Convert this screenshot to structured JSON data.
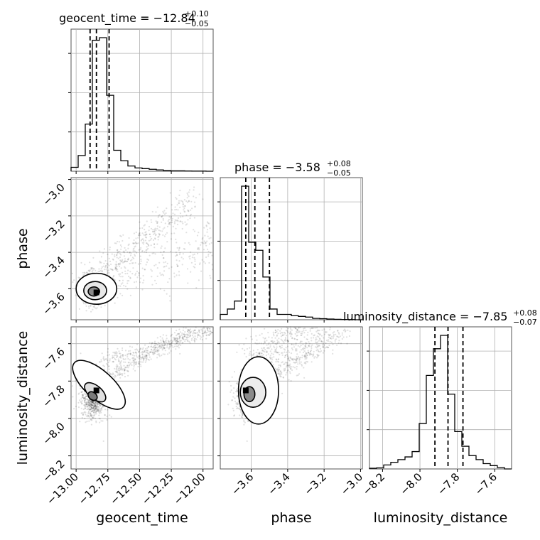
{
  "chart_data": {
    "type": "corner",
    "parameters": [
      "geocent_time",
      "phase",
      "luminosity_distance"
    ],
    "panel_titles": [
      {
        "param": "geocent_time",
        "prefix": "geocent_time = ",
        "value": "−12.84",
        "upper": "+0.10",
        "lower": "−0.05"
      },
      {
        "param": "phase",
        "prefix": "phase = ",
        "value": "−3.58",
        "upper": "+0.08",
        "lower": "−0.05"
      },
      {
        "param": "luminosity_distance",
        "prefix": "luminosity_distance = ",
        "value": "−7.85",
        "upper": "+0.08",
        "lower": "−0.07"
      }
    ],
    "axis_labels": {
      "x": [
        "geocent_time",
        "phase",
        "luminosity_distance"
      ],
      "y": [
        "phase",
        "luminosity_distance"
      ]
    },
    "ranges": {
      "geocent_time": [
        -13.04,
        -11.92
      ],
      "phase": [
        -3.77,
        -2.99
      ],
      "luminosity_distance": [
        -8.27,
        -7.51
      ]
    },
    "ticks": {
      "geocent_time": {
        "values": [
          -13.0,
          -12.75,
          -12.5,
          -12.25,
          -12.0
        ],
        "labels": [
          "−13.00",
          "−12.75",
          "−12.50",
          "−12.25",
          "−12.00"
        ]
      },
      "phase": {
        "values": [
          -3.6,
          -3.4,
          -3.2,
          -3.0
        ],
        "labels": [
          "−3.6",
          "−3.4",
          "−3.2",
          "−3.0"
        ]
      },
      "luminosity_distance": {
        "values": [
          -8.2,
          -8.0,
          -7.8,
          -7.6
        ],
        "labels": [
          "−8.2",
          "−8.0",
          "−7.8",
          "−7.6"
        ]
      }
    },
    "quantiles": {
      "geocent_time": [
        -12.89,
        -12.84,
        -12.74
      ],
      "phase": [
        -3.63,
        -3.58,
        -3.5
      ],
      "luminosity_distance": [
        -7.92,
        -7.85,
        -7.77
      ]
    },
    "histograms": {
      "geocent_time": {
        "edges_start": -13.04,
        "bin_width": 0.056,
        "counts": [
          0.03,
          0.12,
          0.36,
          1.0,
          1.02,
          0.58,
          0.16,
          0.08,
          0.04,
          0.025,
          0.02,
          0.015,
          0.01,
          0.005,
          0.003,
          0.003,
          0.002,
          0.001,
          0.001,
          0.0
        ]
      },
      "phase": {
        "edges_start": -3.77,
        "bin_width": 0.039,
        "counts": [
          0.04,
          0.08,
          0.14,
          1.0,
          0.58,
          0.52,
          0.32,
          0.08,
          0.04,
          0.04,
          0.03,
          0.025,
          0.02,
          0.01,
          0.008,
          0.005,
          0.003,
          0.002,
          0.001,
          0.0
        ]
      },
      "luminosity_distance": {
        "edges_start": -8.27,
        "bin_width": 0.038,
        "counts": [
          0.005,
          0.008,
          0.03,
          0.05,
          0.07,
          0.09,
          0.13,
          0.34,
          0.7,
          0.9,
          1.0,
          0.56,
          0.28,
          0.17,
          0.1,
          0.07,
          0.04,
          0.025,
          0.01,
          0.0
        ]
      }
    },
    "grid": true
  }
}
